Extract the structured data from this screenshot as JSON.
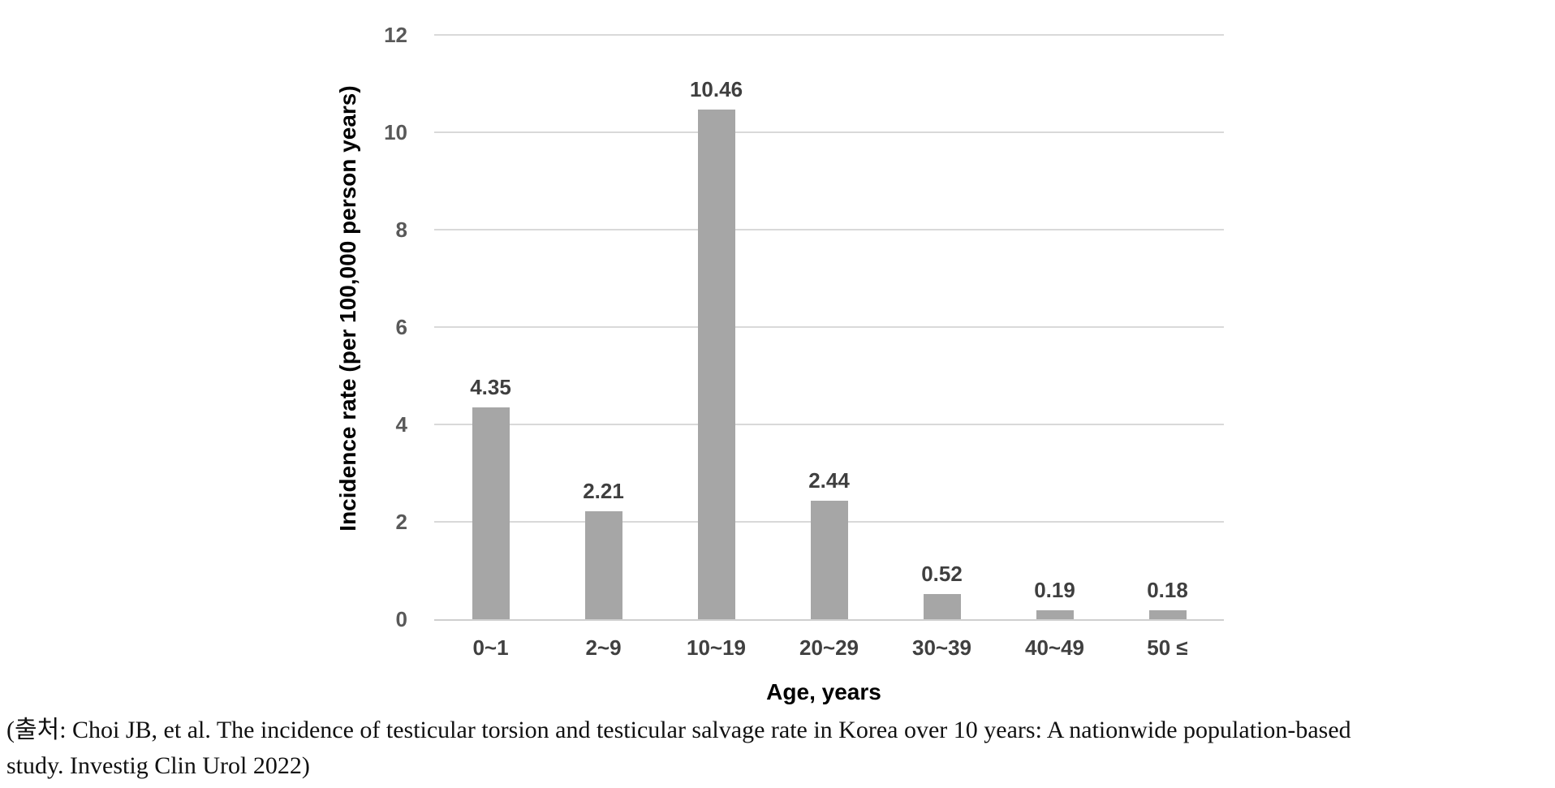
{
  "colors": {
    "bar": "#a6a6a6",
    "grid": "#d9d9d9",
    "axis_line": "#cfcfcf",
    "tick_text": "#595959",
    "value_text": "#3f3f3f",
    "xtick_text": "#404040",
    "title_text": "#000000",
    "caption_text": "#111111"
  },
  "chart_data": {
    "type": "bar",
    "categories": [
      "0~1",
      "2~9",
      "10~19",
      "20~29",
      "30~39",
      "40~49",
      "50 ≤"
    ],
    "values": [
      4.35,
      2.21,
      10.46,
      2.44,
      0.52,
      0.19,
      0.18
    ],
    "value_labels": [
      "4.35",
      "2.21",
      "10.46",
      "2.44",
      "0.52",
      "0.19",
      "0.18"
    ],
    "title": "",
    "xlabel": "Age, years",
    "ylabel": "Incidence rate (per 100,000 person years)",
    "ylim": [
      0,
      12
    ],
    "yticks": [
      0,
      2,
      4,
      6,
      8,
      10,
      12
    ],
    "grid": true,
    "legend": "none",
    "bar_color": "#a6a6a6"
  },
  "caption": {
    "lines": [
      "(출처: Choi JB, et al. The incidence of testicular torsion and testicular salvage rate in Korea over 10 years: A nationwide population-based",
      "study. Investig Clin Urol 2022)"
    ]
  }
}
